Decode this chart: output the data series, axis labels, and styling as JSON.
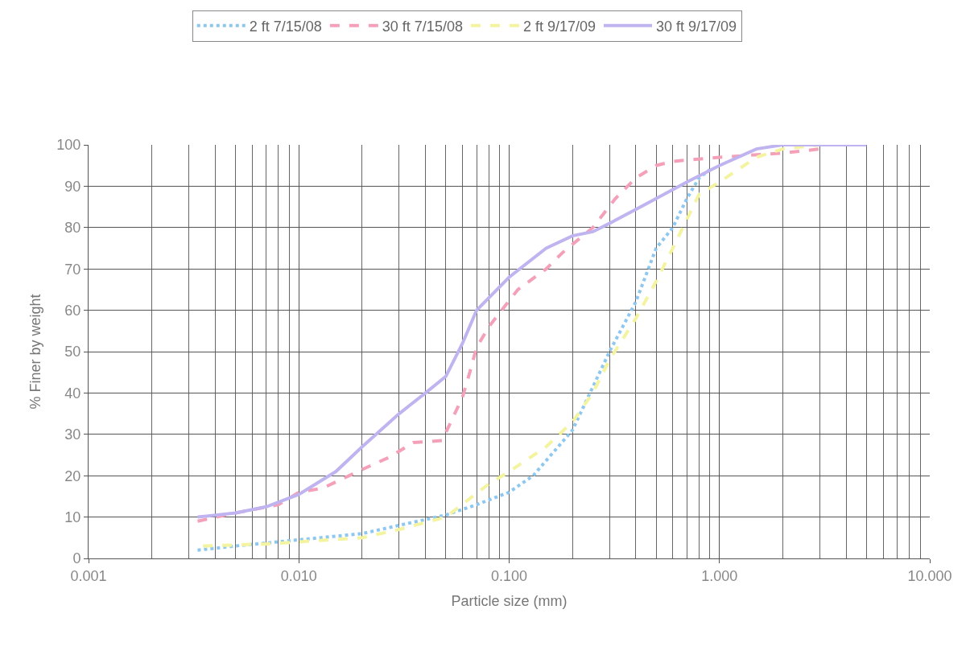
{
  "chart_data": {
    "type": "line",
    "xlabel": "Particle size (mm)",
    "ylabel": "% Finer by weight",
    "log": "x",
    "xlim": [
      0.001,
      10
    ],
    "xticks": [
      {
        "value": 0.001,
        "label": "0.001"
      },
      {
        "value": 0.01,
        "label": "0.010"
      },
      {
        "value": 0.1,
        "label": "0.100"
      },
      {
        "value": 1,
        "label": "1.000"
      },
      {
        "value": 10,
        "label": "10.000"
      }
    ],
    "ylim": [
      0,
      100
    ],
    "yticks": [
      0,
      10,
      20,
      30,
      40,
      50,
      60,
      70,
      80,
      90,
      100
    ],
    "grid": true,
    "legend": "top",
    "marker": "none",
    "series": [
      {
        "name": "2 ft 7/15/08",
        "color": "#8ec8f0",
        "line_style": "dotted",
        "x": [
          0.0033,
          0.005,
          0.01,
          0.02,
          0.03,
          0.05,
          0.07,
          0.1,
          0.13,
          0.2,
          0.3,
          0.4,
          0.5,
          0.6,
          0.7,
          0.8,
          0.9
        ],
        "values": [
          2,
          3,
          4.5,
          6,
          8,
          10.5,
          13,
          16,
          20,
          31,
          50,
          62,
          75,
          80,
          87,
          92,
          94
        ]
      },
      {
        "name": "30 ft 7/15/08",
        "color": "#f4a0b8",
        "line_style": "dashed",
        "x": [
          0.0033,
          0.005,
          0.008,
          0.01,
          0.013,
          0.02,
          0.027,
          0.035,
          0.048,
          0.06,
          0.065,
          0.07,
          0.08,
          0.11,
          0.15,
          0.18,
          0.25,
          0.32,
          0.4,
          0.5,
          0.6,
          1,
          2,
          3
        ],
        "values": [
          9,
          11,
          13,
          16,
          17,
          21.5,
          24.5,
          28,
          28.5,
          39,
          45,
          51,
          56,
          65,
          70,
          74,
          80,
          87,
          92,
          95,
          96,
          97,
          98,
          99
        ]
      },
      {
        "name": "2 ft 9/17/09",
        "color": "#f4f4a0",
        "line_style": "dashed",
        "x": [
          0.0035,
          0.007,
          0.01,
          0.02,
          0.03,
          0.05,
          0.08,
          0.1,
          0.15,
          0.2,
          0.25,
          0.3,
          0.4,
          0.5,
          0.6,
          0.7,
          0.8,
          1,
          1.5,
          2,
          3
        ],
        "values": [
          3,
          3.5,
          4,
          5,
          7,
          10,
          18,
          21,
          27,
          33,
          40,
          48,
          58,
          67,
          75,
          82,
          88,
          91,
          97,
          99,
          100
        ]
      },
      {
        "name": "30 ft 9/17/09",
        "color": "#c0b4f0",
        "line_style": "solid",
        "x": [
          0.0033,
          0.005,
          0.007,
          0.01,
          0.015,
          0.02,
          0.03,
          0.04,
          0.05,
          0.06,
          0.07,
          0.1,
          0.15,
          0.2,
          0.25,
          0.3,
          0.5,
          0.7,
          1,
          1.5,
          2,
          5
        ],
        "values": [
          10,
          11,
          12.5,
          15.5,
          21,
          27,
          35,
          40,
          44,
          52,
          60,
          68,
          75,
          78,
          79,
          81,
          87,
          91,
          95,
          99,
          100,
          100
        ]
      }
    ]
  }
}
